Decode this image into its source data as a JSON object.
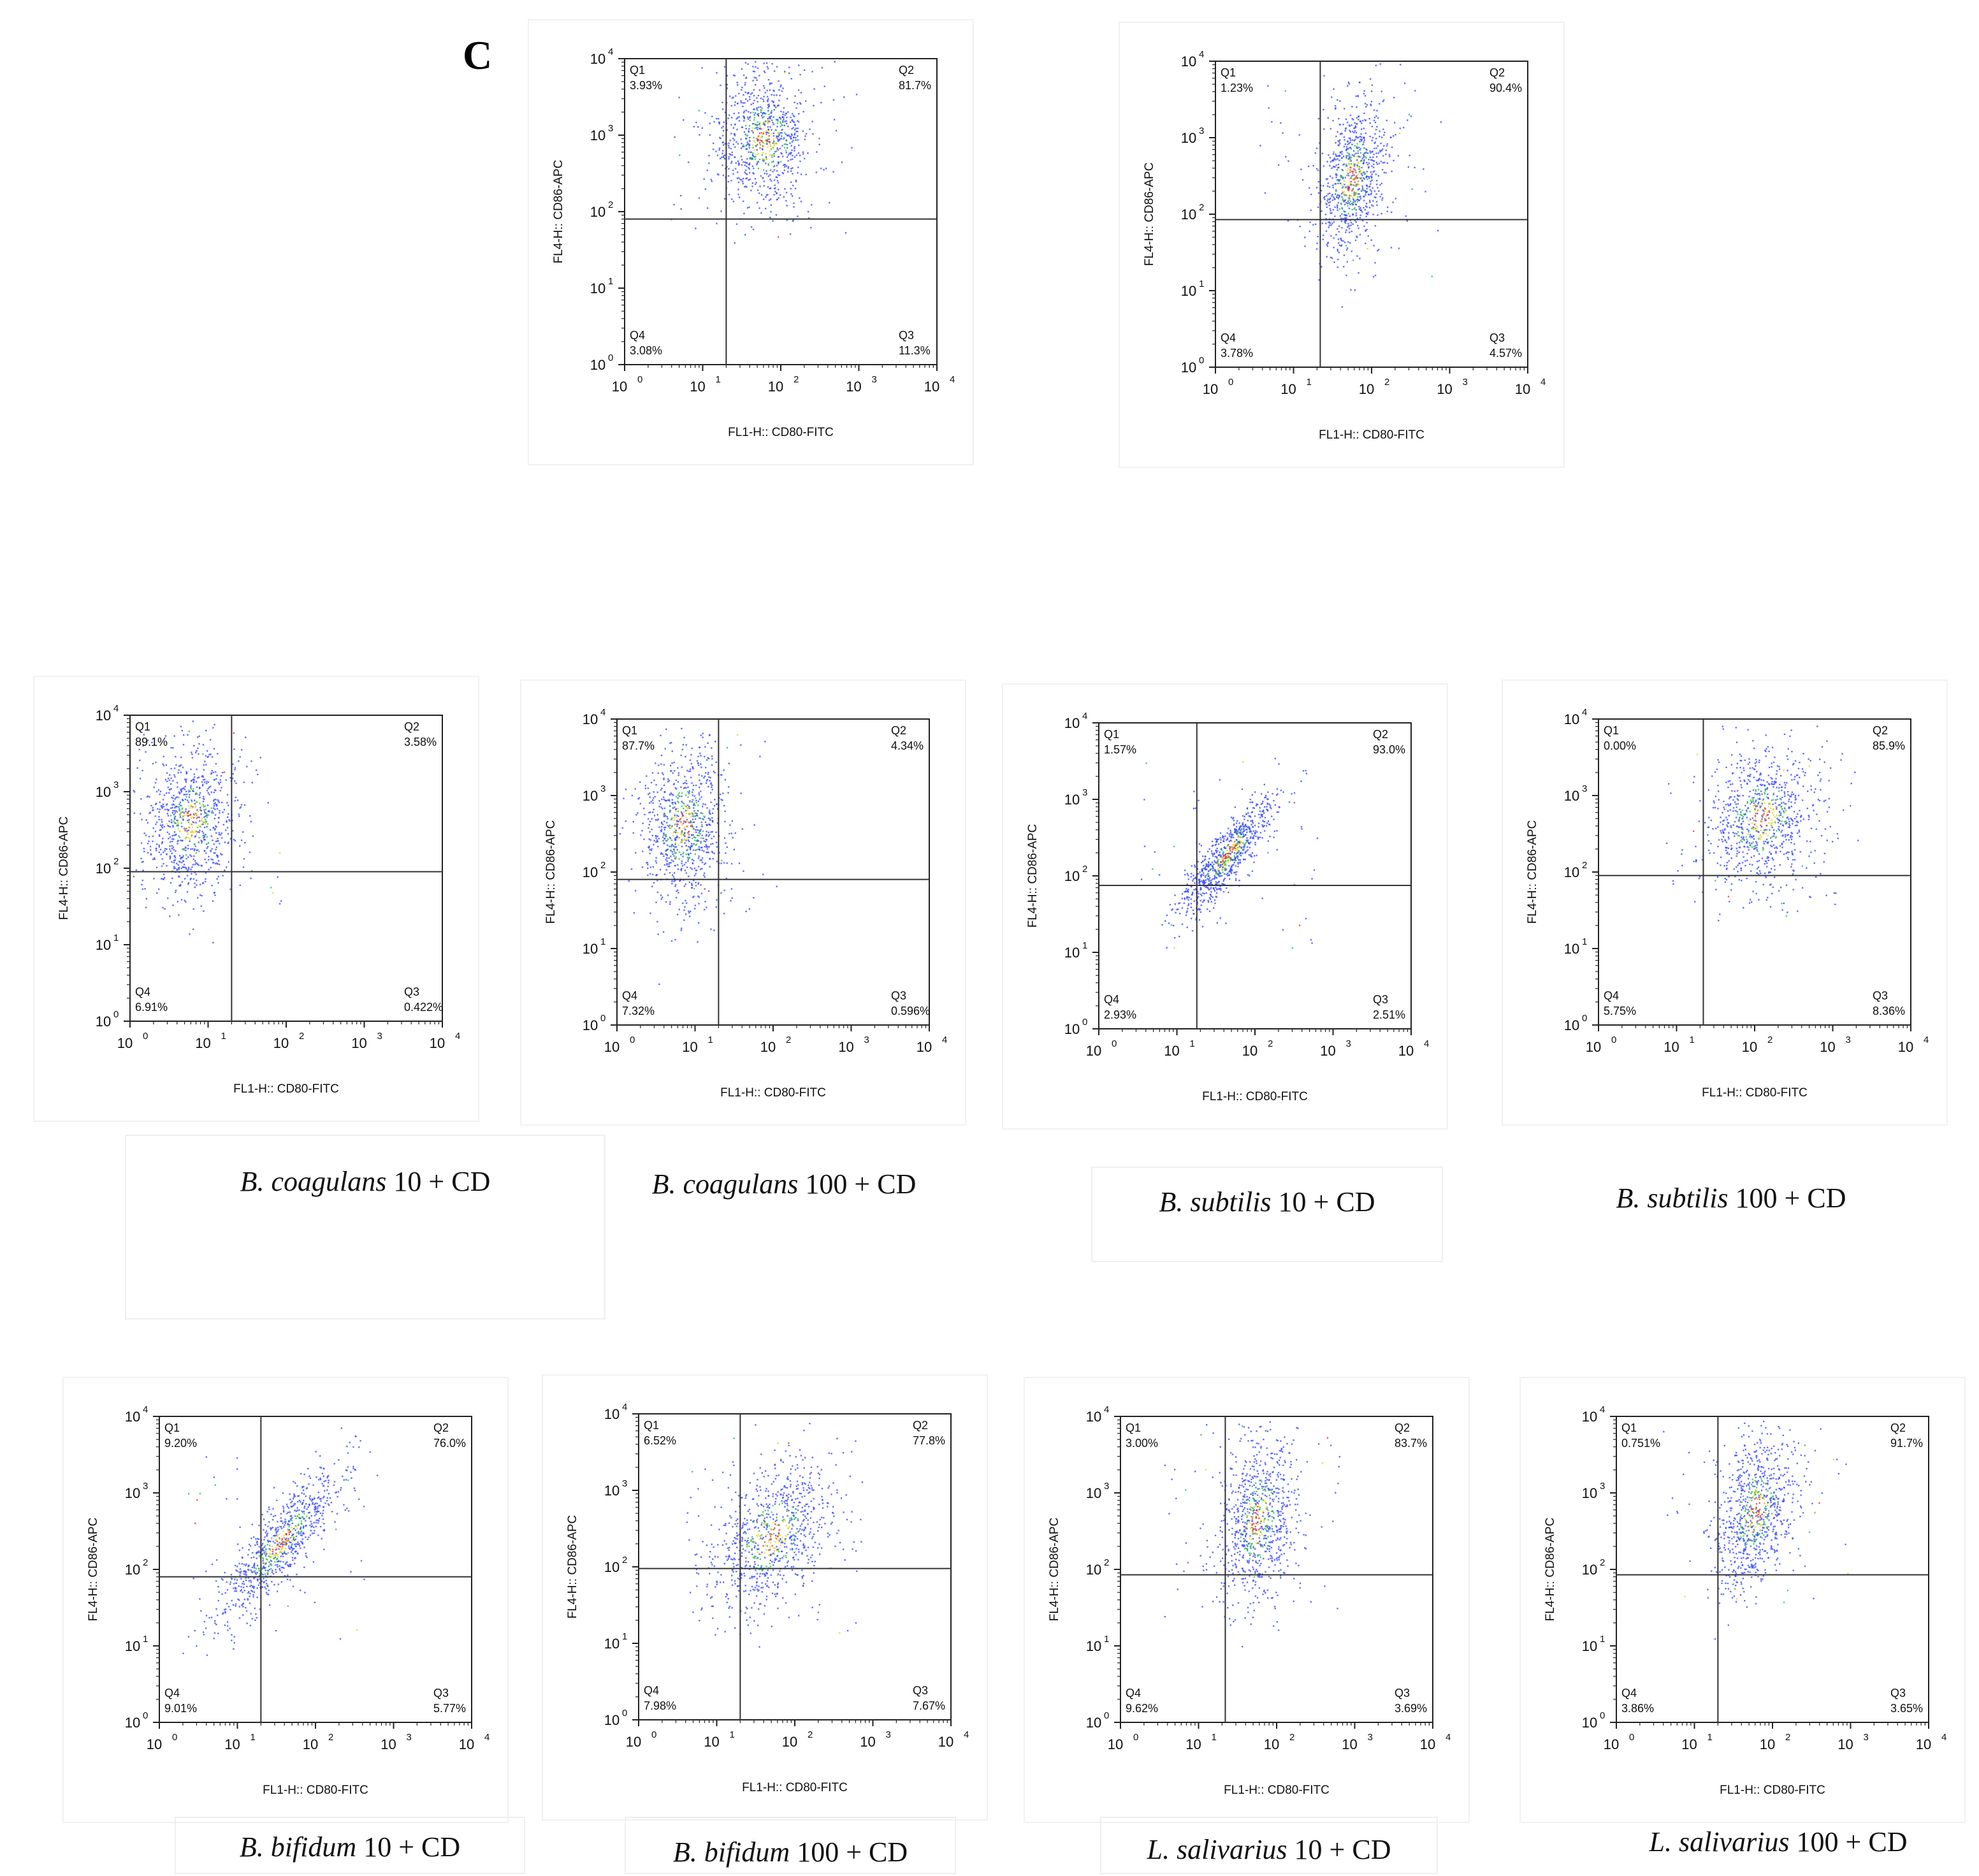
{
  "panel_letter": "C",
  "colors": {
    "dot_blue": "#3a4bff",
    "dot_green": "#2fbf4a",
    "dot_yellow": "#e8d51c",
    "dot_red": "#e23b2a",
    "axis": "#222222",
    "gate": "#333333"
  },
  "chart_data": [
    {
      "type": "scatter",
      "id": "p1",
      "caption_name": "",
      "caption_rest": "",
      "xlabel": "FL1-H:: CD80-FITC",
      "ylabel": "FL4-H:: CD86-APC",
      "xscale": "log",
      "yscale": "log",
      "xlim": [
        1,
        10000
      ],
      "ylim": [
        1,
        10000
      ],
      "xticks": [
        "10",
        "10",
        "10",
        "10",
        "10"
      ],
      "xtick_exp": [
        "0",
        "1",
        "2",
        "3",
        "4"
      ],
      "yticks": [
        "10",
        "10",
        "10",
        "10",
        "10"
      ],
      "ytick_exp": [
        "0",
        "1",
        "2",
        "3",
        "4"
      ],
      "gate": {
        "x": 20,
        "y": 80
      },
      "quadrants": {
        "Q1": "3.93%",
        "Q2": "81.7%",
        "Q3": "11.3%",
        "Q4": "3.08%"
      },
      "cluster": {
        "cx": 60,
        "cy": 900,
        "sx": 0.32,
        "sy": 0.45,
        "rho": 0.0
      }
    },
    {
      "type": "scatter",
      "id": "p2",
      "caption_name": "",
      "caption_rest": "",
      "xlabel": "FL1-H:: CD80-FITC",
      "ylabel": "FL4-H:: CD86-APC",
      "xscale": "log",
      "yscale": "log",
      "xlim": [
        1,
        10000
      ],
      "ylim": [
        1,
        10000
      ],
      "xticks": [
        "10",
        "10",
        "10",
        "10",
        "10"
      ],
      "xtick_exp": [
        "0",
        "1",
        "2",
        "3",
        "4"
      ],
      "yticks": [
        "10",
        "10",
        "10",
        "10",
        "10"
      ],
      "ytick_exp": [
        "0",
        "1",
        "2",
        "3",
        "4"
      ],
      "gate": {
        "x": 22,
        "y": 85
      },
      "quadrants": {
        "Q1": "1.23%",
        "Q2": "90.4%",
        "Q3": "4.57%",
        "Q4": "3.78%"
      },
      "cluster": {
        "cx": 55,
        "cy": 300,
        "sx": 0.22,
        "sy": 0.5,
        "rho": 0.3
      }
    },
    {
      "type": "scatter",
      "id": "p3",
      "caption_name": "B. coagulans",
      "caption_rest": " 10 + CD",
      "xlabel": "FL1-H:: CD80-FITC",
      "ylabel": "FL4-H:: CD86-APC",
      "xscale": "log",
      "yscale": "log",
      "xlim": [
        1,
        10000
      ],
      "ylim": [
        1,
        10000
      ],
      "xticks": [
        "10",
        "10",
        "10",
        "10",
        "10"
      ],
      "xtick_exp": [
        "0",
        "1",
        "2",
        "3",
        "4"
      ],
      "yticks": [
        "10",
        "10",
        "10",
        "10",
        "10"
      ],
      "ytick_exp": [
        "0",
        "1",
        "2",
        "3",
        "4"
      ],
      "gate": {
        "x": 20,
        "y": 90
      },
      "quadrants": {
        "Q1": "89.1%",
        "Q2": "3.58%",
        "Q3": "0.422%",
        "Q4": "6.91%"
      },
      "cluster": {
        "cx": 6,
        "cy": 400,
        "sx": 0.3,
        "sy": 0.48,
        "rho": 0.1
      }
    },
    {
      "type": "scatter",
      "id": "p4",
      "caption_name": "B. coagulans",
      "caption_rest": " 100 + CD",
      "xlabel": "FL1-H:: CD80-FITC",
      "ylabel": "FL4-H:: CD86-APC",
      "xscale": "log",
      "yscale": "log",
      "xlim": [
        1,
        10000
      ],
      "ylim": [
        1,
        10000
      ],
      "xticks": [
        "10",
        "10",
        "10",
        "10",
        "10"
      ],
      "xtick_exp": [
        "0",
        "1",
        "2",
        "3",
        "4"
      ],
      "yticks": [
        "10",
        "10",
        "10",
        "10",
        "10"
      ],
      "ytick_exp": [
        "0",
        "1",
        "2",
        "3",
        "4"
      ],
      "gate": {
        "x": 20,
        "y": 80
      },
      "quadrants": {
        "Q1": "87.7%",
        "Q2": "4.34%",
        "Q3": "0.596%",
        "Q4": "7.32%"
      },
      "cluster": {
        "cx": 7,
        "cy": 400,
        "sx": 0.28,
        "sy": 0.5,
        "rho": 0.1
      }
    },
    {
      "type": "scatter",
      "id": "p5",
      "caption_name": "B. subtilis",
      "caption_rest": " 10 + CD",
      "xlabel": "FL1-H:: CD80-FITC",
      "ylabel": "FL4-H:: CD86-APC",
      "xscale": "log",
      "yscale": "log",
      "xlim": [
        1,
        10000
      ],
      "ylim": [
        1,
        10000
      ],
      "xticks": [
        "10",
        "10",
        "10",
        "10",
        "10"
      ],
      "xtick_exp": [
        "0",
        "1",
        "2",
        "3",
        "4"
      ],
      "yticks": [
        "10",
        "10",
        "10",
        "10",
        "10"
      ],
      "ytick_exp": [
        "0",
        "1",
        "2",
        "3",
        "4"
      ],
      "gate": {
        "x": 18,
        "y": 75
      },
      "quadrants": {
        "Q1": "1.57%",
        "Q2": "93.0%",
        "Q3": "2.51%",
        "Q4": "2.93%"
      },
      "cluster": {
        "cx": 45,
        "cy": 200,
        "sx": 0.3,
        "sy": 0.38,
        "rho": 0.85
      }
    },
    {
      "type": "scatter",
      "id": "p6",
      "caption_name": "B. subtilis",
      "caption_rest": " 100 + CD",
      "xlabel": "FL1-H:: CD80-FITC",
      "ylabel": "FL4-H:: CD86-APC",
      "xscale": "log",
      "yscale": "log",
      "xlim": [
        1,
        10000
      ],
      "ylim": [
        1,
        10000
      ],
      "xticks": [
        "10",
        "10",
        "10",
        "10",
        "10"
      ],
      "xtick_exp": [
        "0",
        "1",
        "2",
        "3",
        "4"
      ],
      "yticks": [
        "10",
        "10",
        "10",
        "10",
        "10"
      ],
      "ytick_exp": [
        "0",
        "1",
        "2",
        "3",
        "4"
      ],
      "gate": {
        "x": 22,
        "y": 90
      },
      "quadrants": {
        "Q1": "0.00%",
        "Q2": "85.9%",
        "Q3": "8.36%",
        "Q4": "5.75%"
      },
      "cluster": {
        "cx": 120,
        "cy": 500,
        "sx": 0.35,
        "sy": 0.45,
        "rho": 0.2
      }
    },
    {
      "type": "scatter",
      "id": "p7",
      "caption_name": "B. bifidum",
      "caption_rest": " 10 + CD",
      "xlabel": "FL1-H:: CD80-FITC",
      "ylabel": "FL4-H:: CD86-APC",
      "xscale": "log",
      "yscale": "log",
      "xlim": [
        1,
        10000
      ],
      "ylim": [
        1,
        10000
      ],
      "xticks": [
        "10",
        "10",
        "10",
        "10",
        "10"
      ],
      "xtick_exp": [
        "0",
        "1",
        "2",
        "3",
        "4"
      ],
      "yticks": [
        "10",
        "10",
        "10",
        "10",
        "10"
      ],
      "ytick_exp": [
        "0",
        "1",
        "2",
        "3",
        "4"
      ],
      "gate": {
        "x": 20,
        "y": 80
      },
      "quadrants": {
        "Q1": "9.20%",
        "Q2": "76.0%",
        "Q3": "5.77%",
        "Q4": "9.01%"
      },
      "cluster": {
        "cx": 35,
        "cy": 220,
        "sx": 0.38,
        "sy": 0.48,
        "rho": 0.85
      }
    },
    {
      "type": "scatter",
      "id": "p8",
      "caption_name": "B. bifidum",
      "caption_rest": " 100 + CD",
      "xlabel": "FL1-H:: CD80-FITC",
      "ylabel": "FL4-H:: CD86-APC",
      "xscale": "log",
      "yscale": "log",
      "xlim": [
        1,
        10000
      ],
      "ylim": [
        1,
        10000
      ],
      "xticks": [
        "10",
        "10",
        "10",
        "10",
        "10"
      ],
      "xtick_exp": [
        "0",
        "1",
        "2",
        "3",
        "4"
      ],
      "yticks": [
        "10",
        "10",
        "10",
        "10",
        "10"
      ],
      "ytick_exp": [
        "0",
        "1",
        "2",
        "3",
        "4"
      ],
      "gate": {
        "x": 20,
        "y": 95
      },
      "quadrants": {
        "Q1": "6.52%",
        "Q2": "77.8%",
        "Q3": "7.67%",
        "Q4": "7.98%"
      },
      "cluster": {
        "cx": 50,
        "cy": 250,
        "sx": 0.38,
        "sy": 0.5,
        "rho": 0.4
      }
    },
    {
      "type": "scatter",
      "id": "p9",
      "caption_name": "L. salivarius",
      "caption_rest": " 10 + CD",
      "xlabel": "FL1-H:: CD80-FITC",
      "ylabel": "FL4-H:: CD86-APC",
      "xscale": "log",
      "yscale": "log",
      "xlim": [
        1,
        10000
      ],
      "ylim": [
        1,
        10000
      ],
      "xticks": [
        "10",
        "10",
        "10",
        "10",
        "10"
      ],
      "xtick_exp": [
        "0",
        "1",
        "2",
        "3",
        "4"
      ],
      "yticks": [
        "10",
        "10",
        "10",
        "10",
        "10"
      ],
      "ytick_exp": [
        "0",
        "1",
        "2",
        "3",
        "4"
      ],
      "gate": {
        "x": 22,
        "y": 85
      },
      "quadrants": {
        "Q1": "3.00%",
        "Q2": "83.7%",
        "Q3": "3.69%",
        "Q4": "9.62%"
      },
      "cluster": {
        "cx": 55,
        "cy": 450,
        "sx": 0.25,
        "sy": 0.55,
        "rho": 0.2
      }
    },
    {
      "type": "scatter",
      "id": "p10",
      "caption_name": "L. salivarius",
      "caption_rest": " 100 + CD",
      "xlabel": "FL1-H:: CD80-FITC",
      "ylabel": "FL4-H:: CD86-APC",
      "xscale": "log",
      "yscale": "log",
      "xlim": [
        1,
        10000
      ],
      "ylim": [
        1,
        10000
      ],
      "xticks": [
        "10",
        "10",
        "10",
        "10",
        "10"
      ],
      "xtick_exp": [
        "0",
        "1",
        "2",
        "3",
        "4"
      ],
      "yticks": [
        "10",
        "10",
        "10",
        "10",
        "10"
      ],
      "ytick_exp": [
        "0",
        "1",
        "2",
        "3",
        "4"
      ],
      "gate": {
        "x": 20,
        "y": 85
      },
      "quadrants": {
        "Q1": "0.751%",
        "Q2": "91.7%",
        "Q3": "3.65%",
        "Q4": "3.86%"
      },
      "cluster": {
        "cx": 60,
        "cy": 600,
        "sx": 0.25,
        "sy": 0.5,
        "rho": 0.3
      }
    }
  ]
}
